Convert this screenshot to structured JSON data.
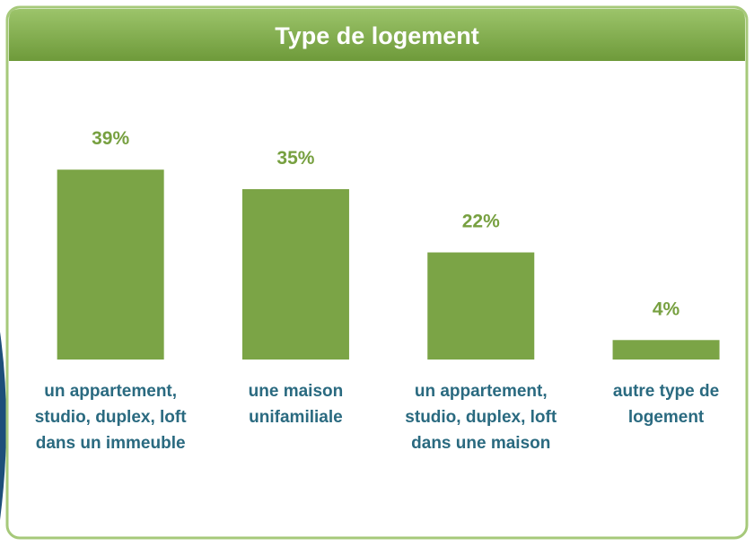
{
  "chart_data": {
    "type": "bar",
    "title": "Type de logement",
    "categories": [
      "un appartement, studio, duplex, loft dans un immeuble",
      "une maison unifamiliale",
      "un appartement, studio, duplex, loft dans une maison",
      "autre type de logement"
    ],
    "values": [
      39,
      35,
      22,
      4
    ],
    "value_labels": [
      "39%",
      "35%",
      "22%",
      "4%"
    ],
    "color": "#7ba446"
  }
}
